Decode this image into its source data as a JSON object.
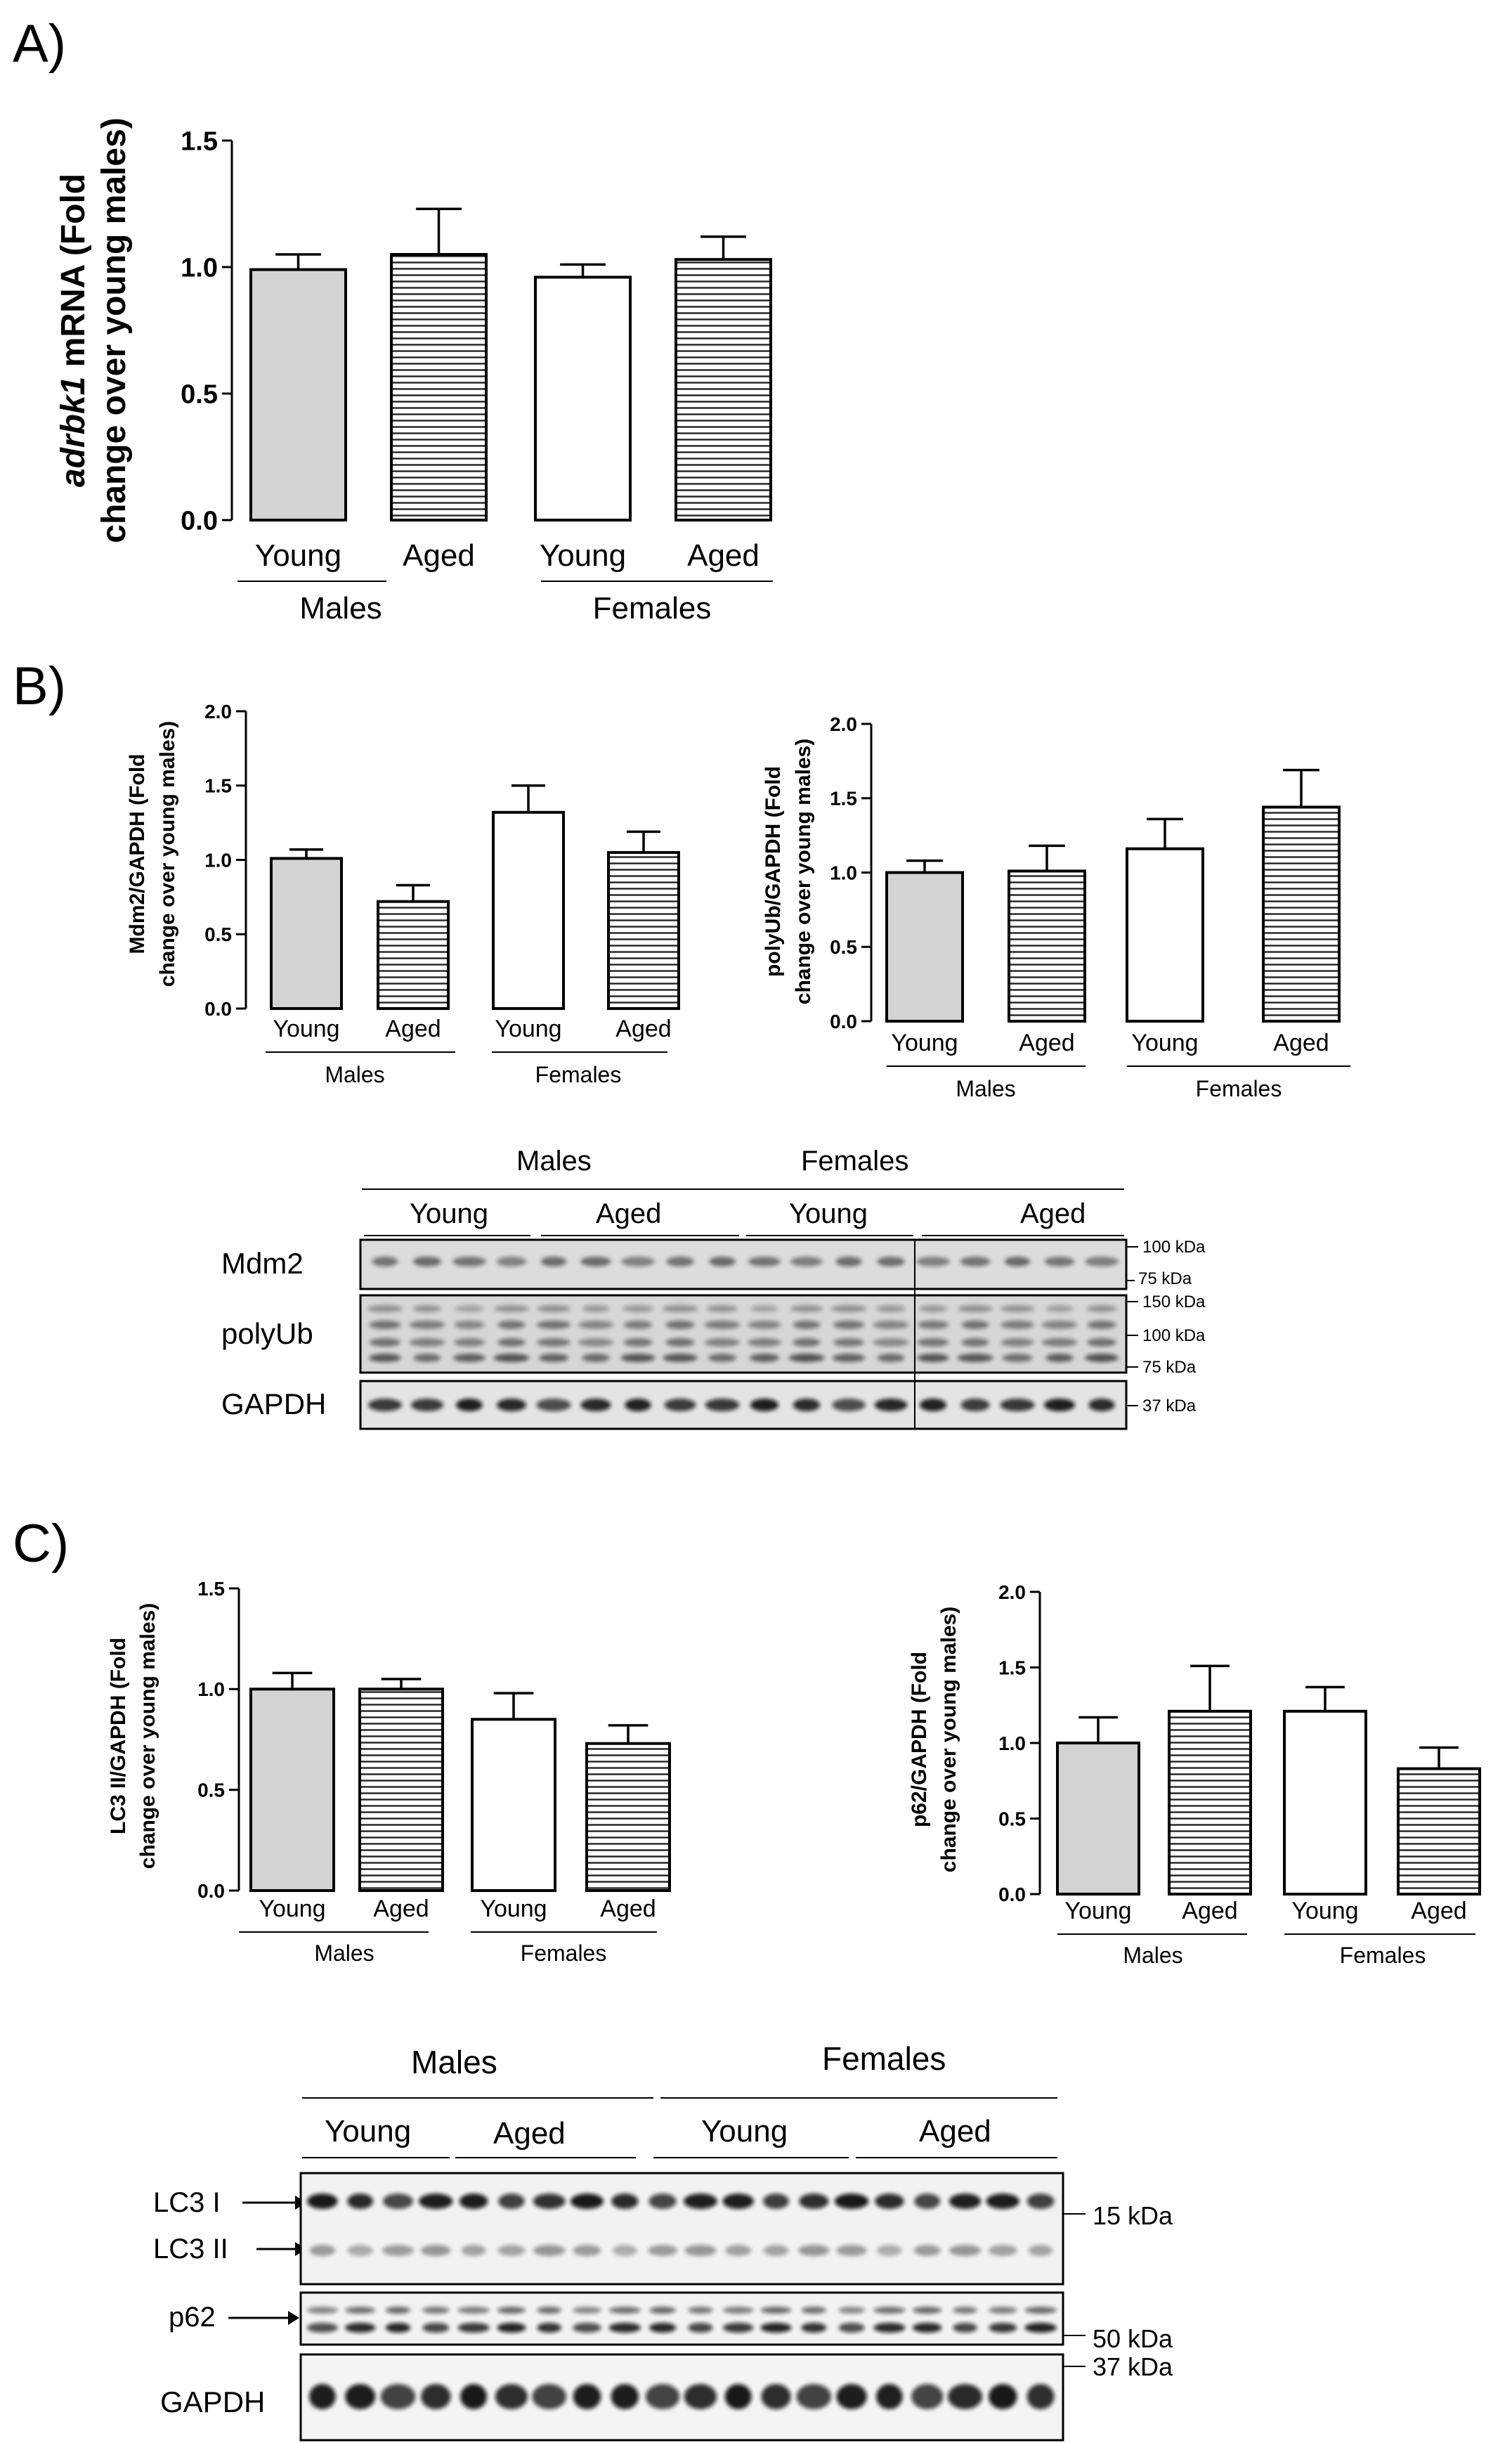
{
  "panel_labels": {
    "a": "A)",
    "b": "B)",
    "c": "C)"
  },
  "chart_data": [
    {
      "id": "a",
      "type": "bar",
      "title": "",
      "ylabel_lines": [
        [
          "adrbk1",
          " mRNA (Fold"
        ],
        [
          "change over young males)",
          ""
        ]
      ],
      "ylabel_italic_first": true,
      "ylim": [
        0,
        1.5
      ],
      "ticks": [
        0.0,
        0.5,
        1.0,
        1.5
      ],
      "tick_labels": [
        "0.0",
        "0.5",
        "1.0",
        "1.5"
      ],
      "categories": [
        "Young",
        "Aged",
        "Young",
        "Aged"
      ],
      "groups": [
        "Males",
        "Females"
      ],
      "values": [
        0.99,
        1.05,
        0.96,
        1.03
      ],
      "errors": [
        0.06,
        0.18,
        0.05,
        0.09
      ],
      "fills": [
        "gray",
        "hlines",
        "white",
        "hlines"
      ]
    },
    {
      "id": "b1",
      "type": "bar",
      "title": "",
      "ylabel_lines": [
        [
          "Mdm2/GAPDH (Fold",
          ""
        ],
        [
          "change over young males)",
          ""
        ]
      ],
      "ylabel_italic_first": false,
      "ylim": [
        0,
        2.0
      ],
      "ticks": [
        0.0,
        0.5,
        1.0,
        1.5,
        2.0
      ],
      "tick_labels": [
        "0.0",
        "0.5",
        "1.0",
        "1.5",
        "2.0"
      ],
      "categories": [
        "Young",
        "Aged",
        "Young",
        "Aged"
      ],
      "groups": [
        "Males",
        "Females"
      ],
      "values": [
        1.01,
        0.72,
        1.32,
        1.05
      ],
      "errors": [
        0.06,
        0.11,
        0.18,
        0.14
      ],
      "fills": [
        "gray",
        "hlines",
        "white",
        "hlines"
      ]
    },
    {
      "id": "b2",
      "type": "bar",
      "title": "",
      "ylabel_lines": [
        [
          "polyUb/GAPDH (Fold",
          ""
        ],
        [
          "change over young males)",
          ""
        ]
      ],
      "ylabel_italic_first": false,
      "ylim": [
        0,
        2.0
      ],
      "ticks": [
        0.0,
        0.5,
        1.0,
        1.5,
        2.0
      ],
      "tick_labels": [
        "0.0",
        "0.5",
        "1.0",
        "1.5",
        "2.0"
      ],
      "categories": [
        "Young",
        "Aged",
        "Young",
        "Aged"
      ],
      "groups": [
        "Males",
        "Females"
      ],
      "values": [
        1.0,
        1.01,
        1.16,
        1.44
      ],
      "errors": [
        0.08,
        0.17,
        0.2,
        0.25
      ],
      "fills": [
        "gray",
        "hlines",
        "white",
        "hlines"
      ]
    },
    {
      "id": "c1",
      "type": "bar",
      "title": "",
      "ylabel_lines": [
        [
          "LC3 II/GAPDH (Fold",
          ""
        ],
        [
          "change over young males)",
          ""
        ]
      ],
      "ylabel_italic_first": false,
      "ylim": [
        0,
        1.5
      ],
      "ticks": [
        0.0,
        0.5,
        1.0,
        1.5
      ],
      "tick_labels": [
        "0.0",
        "0.5",
        "1.0",
        "1.5"
      ],
      "categories": [
        "Young",
        "Aged",
        "Young",
        "Aged"
      ],
      "groups": [
        "Males",
        "Females"
      ],
      "values": [
        1.0,
        1.0,
        0.85,
        0.73
      ],
      "errors": [
        0.08,
        0.05,
        0.13,
        0.09
      ],
      "fills": [
        "gray",
        "hlines",
        "white",
        "hlines"
      ]
    },
    {
      "id": "c2",
      "type": "bar",
      "title": "",
      "ylabel_lines": [
        [
          "p62/GAPDH (Fold",
          ""
        ],
        [
          "change over young males)",
          ""
        ]
      ],
      "ylabel_italic_first": false,
      "ylim": [
        0,
        2.0
      ],
      "ticks": [
        0.0,
        0.5,
        1.0,
        1.5,
        2.0
      ],
      "tick_labels": [
        "0.0",
        "0.5",
        "1.0",
        "1.5",
        "2.0"
      ],
      "categories": [
        "Young",
        "Aged",
        "Young",
        "Aged"
      ],
      "groups": [
        "Males",
        "Females"
      ],
      "values": [
        1.0,
        1.21,
        1.21,
        0.83
      ],
      "errors": [
        0.17,
        0.3,
        0.16,
        0.14
      ],
      "fills": [
        "gray",
        "hlines",
        "white",
        "hlines"
      ]
    }
  ],
  "blot_b": {
    "groups": [
      "Males",
      "Females"
    ],
    "subgroups": [
      "Young",
      "Aged",
      "Young",
      "Aged"
    ],
    "rows": [
      "Mdm2",
      "polyUb",
      "GAPDH"
    ],
    "markers": [
      "100 kDa",
      "75 kDa",
      "150 kDa",
      "100 kDa",
      "75 kDa",
      "37 kDa"
    ]
  },
  "blot_c": {
    "groups": [
      "Males",
      "Females"
    ],
    "subgroups": [
      "Young",
      "Aged",
      "Young",
      "Aged"
    ],
    "rows": [
      "LC3 I",
      "LC3 II",
      "p62",
      "GAPDH"
    ],
    "markers": [
      "15 kDa",
      "50 kDa",
      "37 kDa"
    ]
  }
}
